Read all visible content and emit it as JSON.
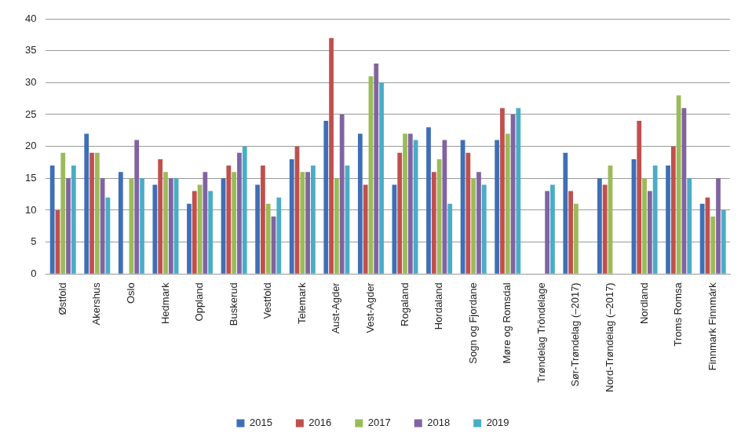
{
  "chart_data": {
    "type": "bar",
    "categories": [
      "Østfold",
      "Akershus",
      "Oslo",
      "Hedmark",
      "Oppland",
      "Buskerud",
      "Vestfold",
      "Telemark",
      "Aust-Agder",
      "Vest-Agder",
      "Rogaland",
      "Hordaland",
      "Sogn og Fjordane",
      "Møre og Romsdal",
      "Trøndelag Tröndelage",
      "Sør-Trøndelag (–2017)",
      "Nord-Trøndelag (–2017)",
      "Nordland",
      "Troms Romsa",
      "Finnmark Finnmárk"
    ],
    "series": [
      {
        "name": "2015",
        "color": "#3f6fb5",
        "values": [
          17,
          22,
          16,
          14,
          11,
          15,
          14,
          18,
          24,
          22,
          14,
          23,
          21,
          21,
          null,
          19,
          15,
          18,
          17,
          11
        ]
      },
      {
        "name": "2016",
        "color": "#c0504d",
        "values": [
          10,
          19,
          null,
          18,
          13,
          17,
          17,
          20,
          37,
          14,
          19,
          16,
          19,
          26,
          null,
          13,
          14,
          24,
          20,
          12
        ]
      },
      {
        "name": "2017",
        "color": "#9bbb59",
        "values": [
          19,
          19,
          15,
          16,
          14,
          16,
          11,
          16,
          15,
          31,
          22,
          18,
          15,
          22,
          null,
          11,
          17,
          15,
          28,
          9
        ]
      },
      {
        "name": "2018",
        "color": "#8064a2",
        "values": [
          15,
          15,
          21,
          15,
          16,
          19,
          9,
          16,
          25,
          33,
          22,
          21,
          16,
          25,
          13,
          null,
          null,
          13,
          26,
          15
        ]
      },
      {
        "name": "2019",
        "color": "#4bacc6",
        "values": [
          17,
          12,
          15,
          15,
          13,
          20,
          12,
          17,
          17,
          30,
          21,
          11,
          14,
          26,
          14,
          null,
          null,
          17,
          15,
          10
        ]
      }
    ],
    "ylim": [
      0,
      40
    ],
    "yticks": [
      0,
      5,
      10,
      15,
      20,
      25,
      30,
      35,
      40
    ],
    "grid": true,
    "legend": "bottom"
  }
}
